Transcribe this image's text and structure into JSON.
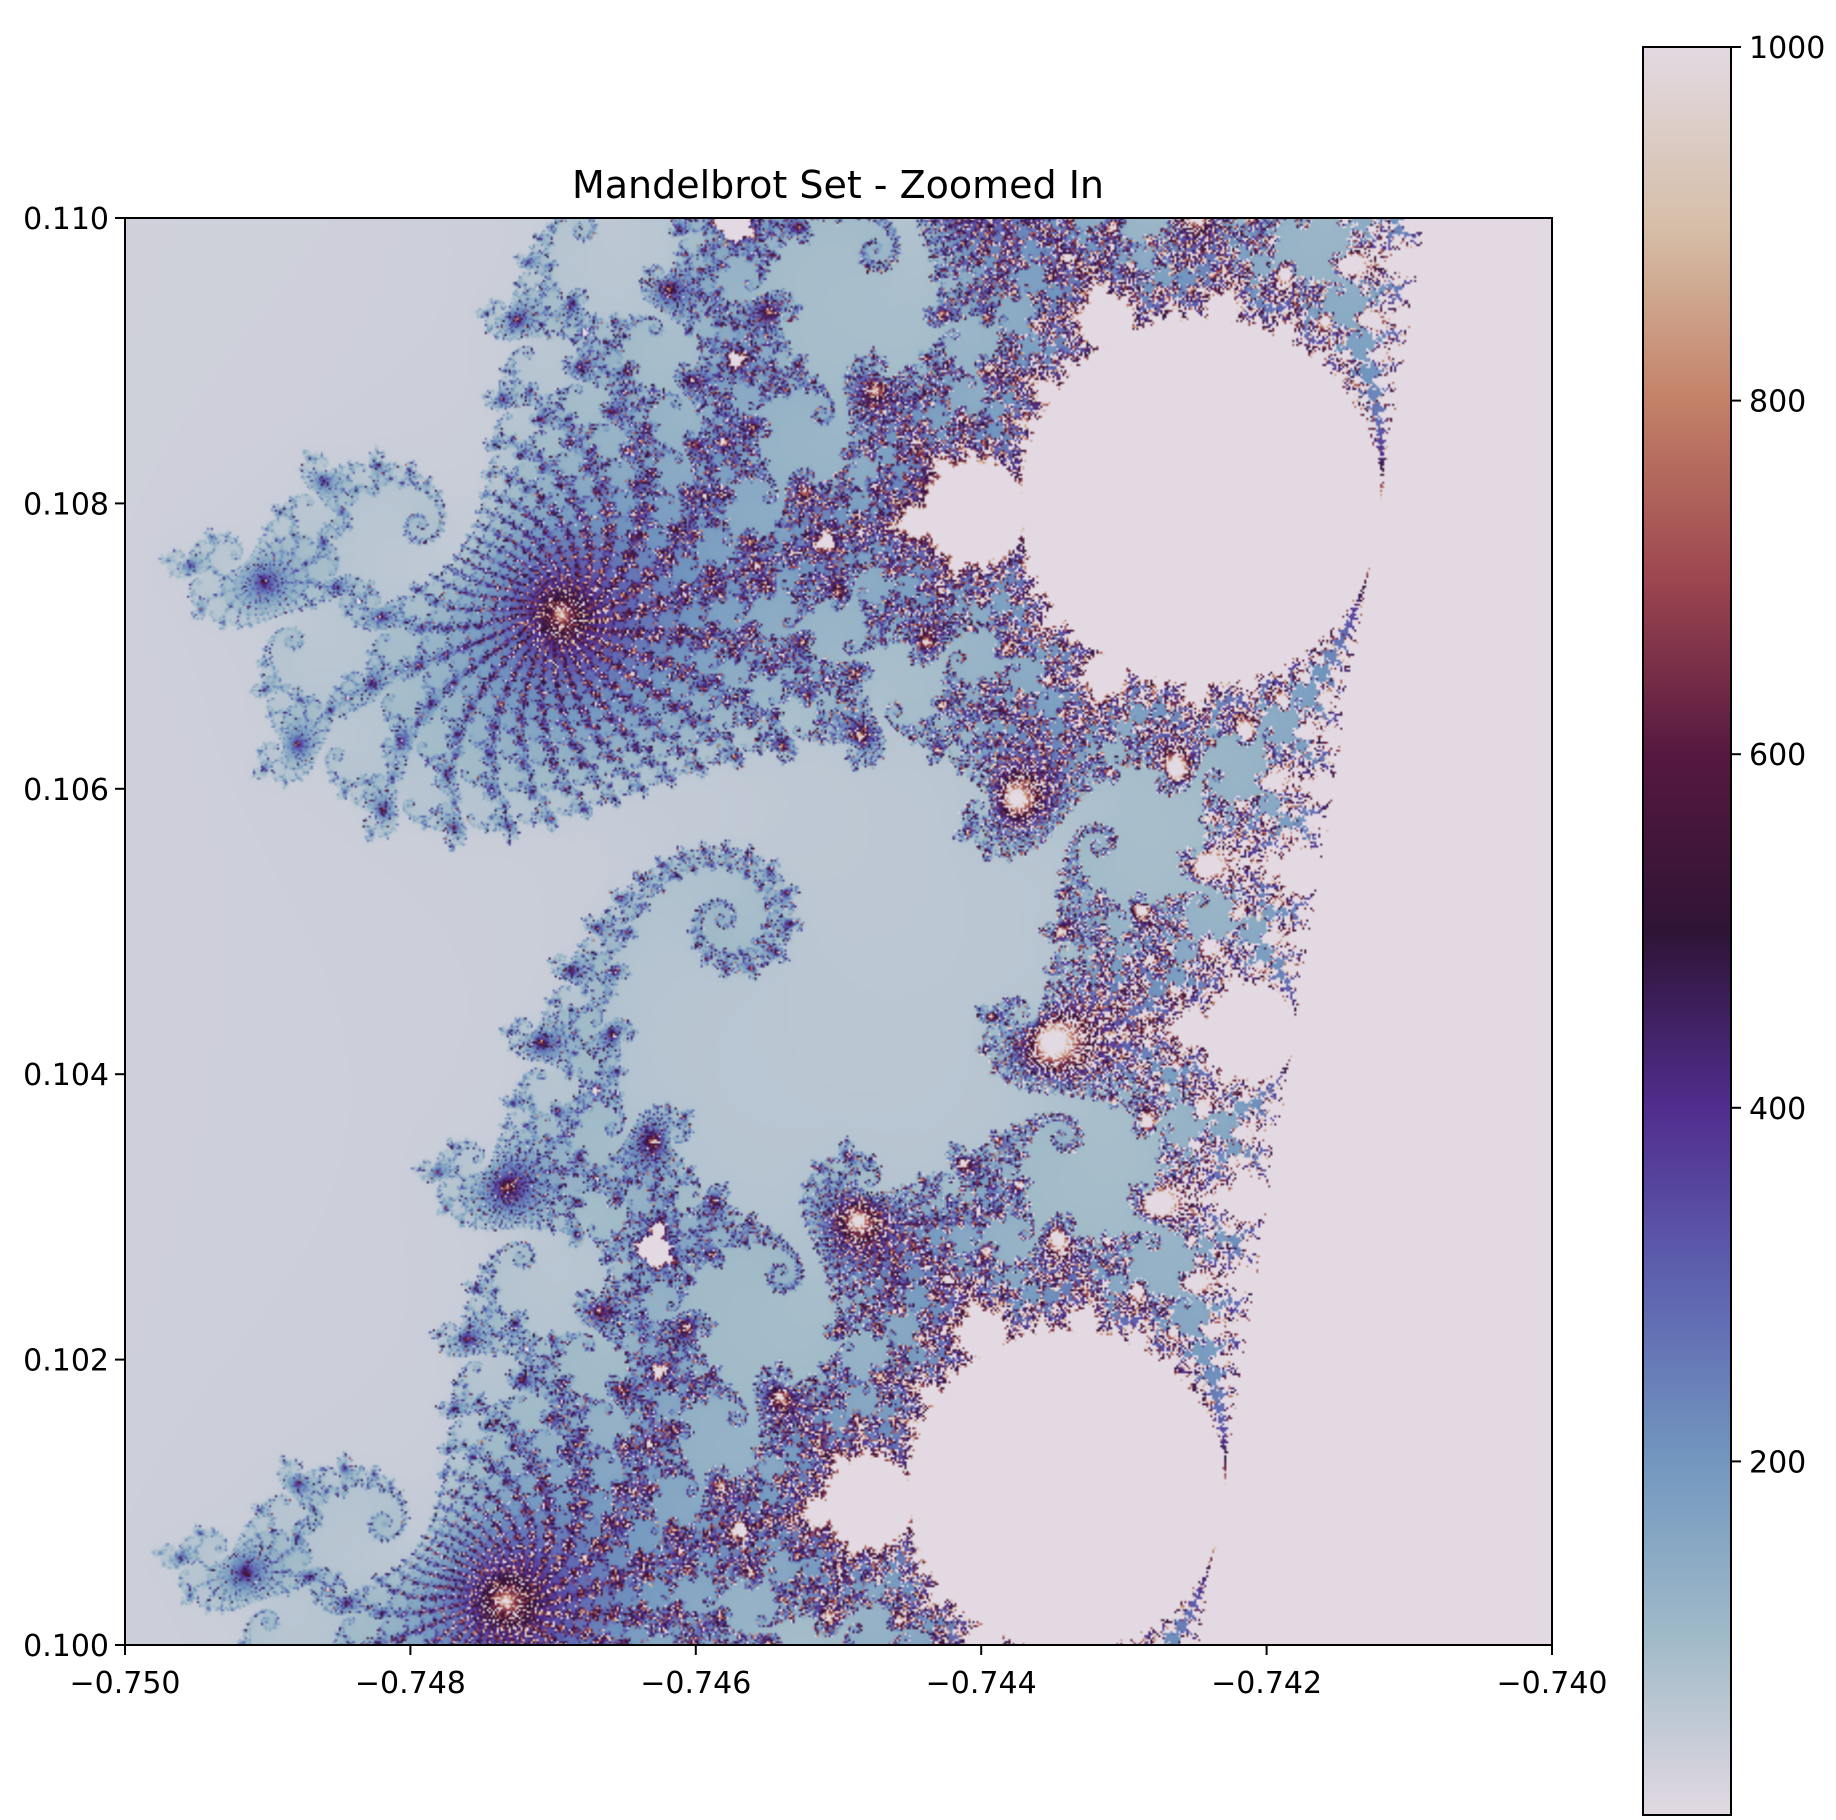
{
  "chart_data": {
    "type": "heatmap",
    "title": "Mandelbrot Set - Zoomed In",
    "xlabel": "",
    "ylabel": "",
    "xlim": [
      -0.75,
      -0.74
    ],
    "ylim": [
      0.1,
      0.11
    ],
    "x_ticks": [
      -0.75,
      -0.748,
      -0.746,
      -0.744,
      -0.742,
      -0.74
    ],
    "x_tick_labels": [
      "−0.750",
      "−0.748",
      "−0.746",
      "−0.744",
      "−0.742",
      "−0.740"
    ],
    "y_ticks": [
      0.1,
      0.102,
      0.104,
      0.106,
      0.108,
      0.11
    ],
    "y_tick_labels": [
      "0.100",
      "0.102",
      "0.104",
      "0.106",
      "0.108",
      "0.110"
    ],
    "max_iterations": 1000,
    "colormap": "twilight",
    "colorbar": {
      "range": [
        0,
        1000
      ],
      "ticks": [
        200,
        400,
        600,
        800,
        1000
      ],
      "tick_labels": [
        "200",
        "400",
        "600",
        "800",
        "1000"
      ],
      "stops": [
        {
          "value": 0,
          "color": "#e2d9e2"
        },
        {
          "value": 100,
          "color": "#a0bac8"
        },
        {
          "value": 200,
          "color": "#7297bf"
        },
        {
          "value": 300,
          "color": "#5e63b0"
        },
        {
          "value": 400,
          "color": "#512d8e"
        },
        {
          "value": 500,
          "color": "#2f1436"
        },
        {
          "value": 600,
          "color": "#561840"
        },
        {
          "value": 700,
          "color": "#9d4750"
        },
        {
          "value": 800,
          "color": "#c38167"
        },
        {
          "value": 900,
          "color": "#d6bfa9"
        },
        {
          "value": 1000,
          "color": "#e2d9e2"
        }
      ]
    }
  }
}
